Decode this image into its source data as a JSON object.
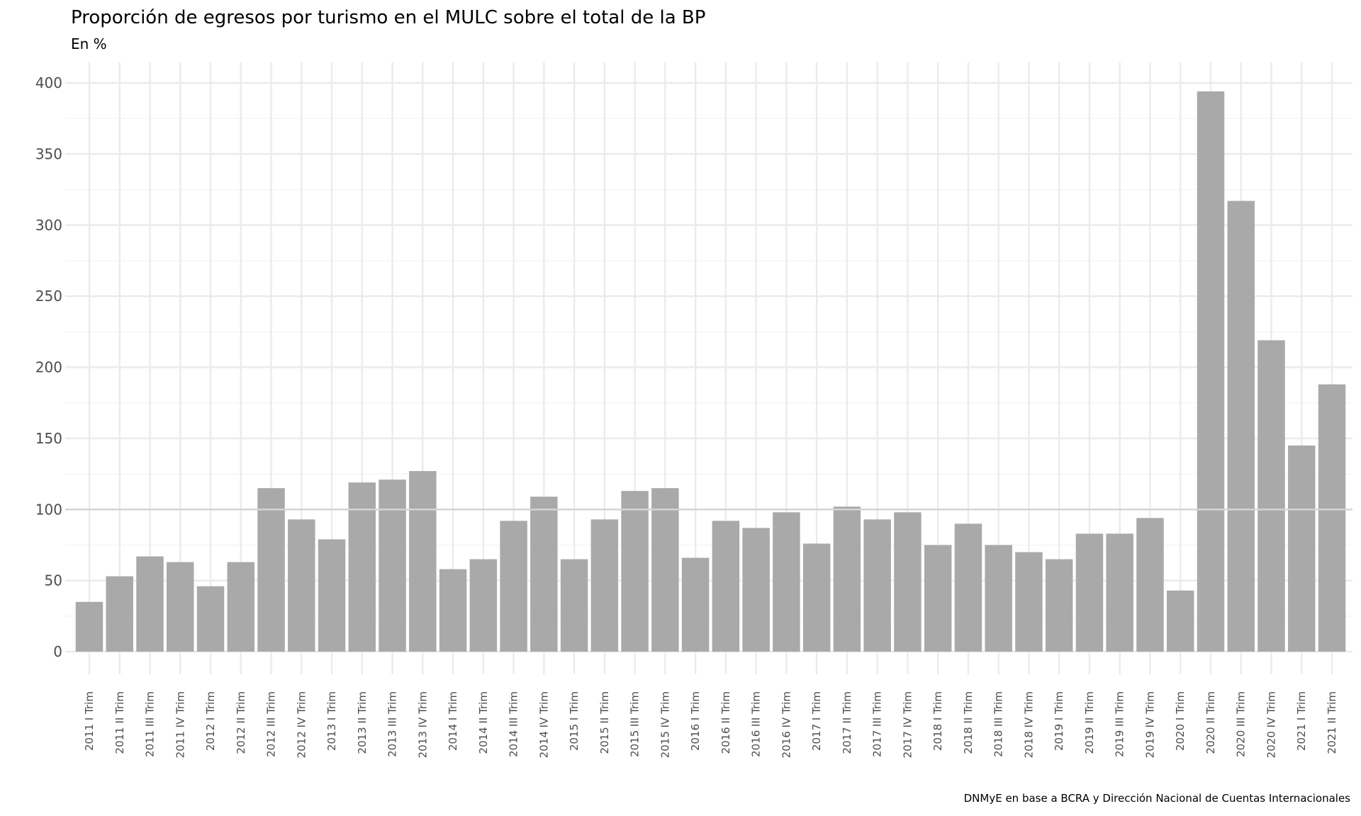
{
  "chart_data": {
    "type": "bar",
    "title": "Proporción de egresos por turismo en el MULC sobre el total de la BP",
    "subtitle": "En %",
    "caption": "DNMyE en base a BCRA y Dirección Nacional de Cuentas Internacionales",
    "xlabel": "",
    "ylabel": "",
    "ylim": [
      0,
      400
    ],
    "yticks": [
      0,
      50,
      100,
      150,
      200,
      250,
      300,
      350,
      400
    ],
    "reference_line": 100,
    "grid": true,
    "bar_color": "#a9a9a9",
    "categories": [
      "2011 I Trim",
      "2011 II Trim",
      "2011 III Trim",
      "2011 IV Trim",
      "2012 I Trim",
      "2012 II Trim",
      "2012 III Trim",
      "2012 IV Trim",
      "2013 I Trim",
      "2013 II Trim",
      "2013 III Trim",
      "2013 IV Trim",
      "2014 I Trim",
      "2014 II Trim",
      "2014 III Trim",
      "2014 IV Trim",
      "2015 I Trim",
      "2015 II Trim",
      "2015 III Trim",
      "2015 IV Trim",
      "2016 I Trim",
      "2016 II Trim",
      "2016 III Trim",
      "2016 IV Trim",
      "2017 I Trim",
      "2017 II Trim",
      "2017 III Trim",
      "2017 IV Trim",
      "2018 I Trim",
      "2018 II Trim",
      "2018 III Trim",
      "2018 IV Trim",
      "2019 I Trim",
      "2019 II Trim",
      "2019 III Trim",
      "2019 IV Trim",
      "2020 I Trim",
      "2020 II Trim",
      "2020 III Trim",
      "2020 IV Trim",
      "2021 I Trim",
      "2021 II Trim"
    ],
    "values": [
      35,
      53,
      67,
      63,
      46,
      63,
      115,
      93,
      79,
      119,
      121,
      127,
      58,
      65,
      92,
      109,
      65,
      93,
      113,
      115,
      66,
      92,
      87,
      98,
      76,
      102,
      93,
      98,
      75,
      90,
      75,
      70,
      65,
      83,
      83,
      94,
      43,
      394,
      317,
      219,
      145,
      188
    ]
  }
}
